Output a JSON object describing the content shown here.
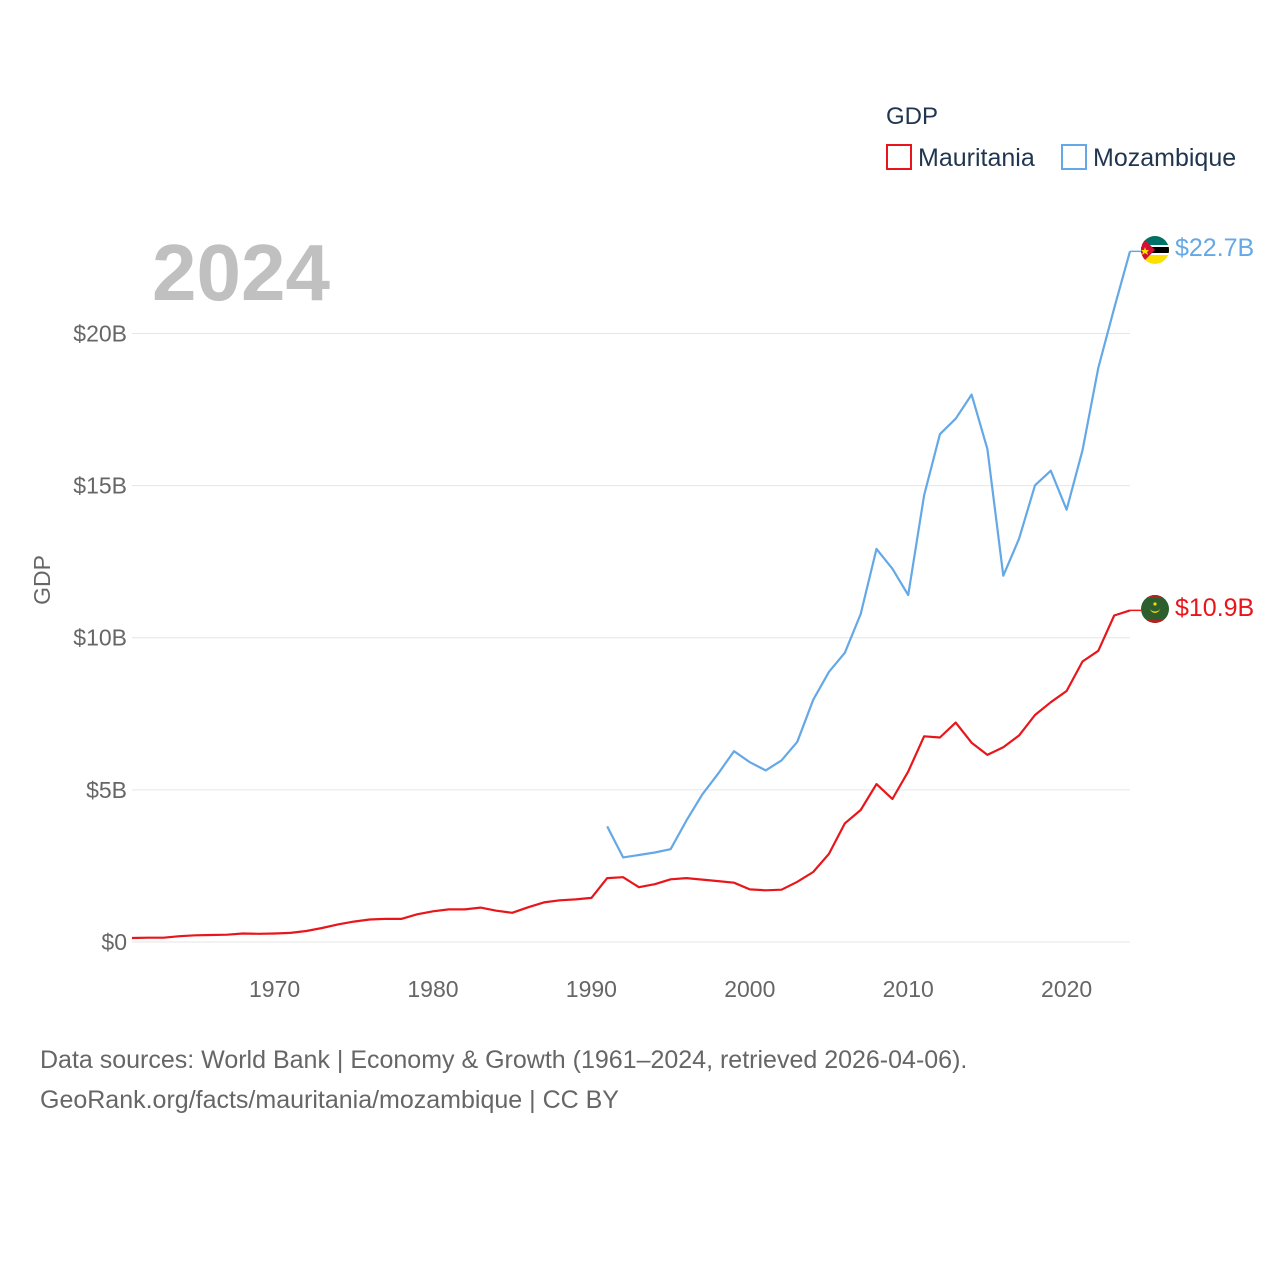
{
  "chart_data": {
    "type": "line",
    "year_label": "2024",
    "ylabel": "GDP",
    "ylim": [
      0,
      23.5
    ],
    "xlim": [
      1961,
      2024
    ],
    "y_ticks": [
      {
        "value": 0,
        "label": "$0"
      },
      {
        "value": 5,
        "label": "$5B"
      },
      {
        "value": 10,
        "label": "$10B"
      },
      {
        "value": 15,
        "label": "$15B"
      },
      {
        "value": 20,
        "label": "$20B"
      }
    ],
    "x_ticks": [
      {
        "value": 1970,
        "label": "1970"
      },
      {
        "value": 1980,
        "label": "1980"
      },
      {
        "value": 1990,
        "label": "1990"
      },
      {
        "value": 2000,
        "label": "2000"
      },
      {
        "value": 2010,
        "label": "2010"
      },
      {
        "value": 2020,
        "label": "2020"
      }
    ],
    "legend": {
      "title": "GDP",
      "position": "top-right"
    },
    "series": [
      {
        "name": "Mauritania",
        "color": "#e8161a",
        "end_label": "$10.9B",
        "x": [
          1961,
          1962,
          1963,
          1964,
          1965,
          1966,
          1967,
          1968,
          1969,
          1970,
          1971,
          1972,
          1973,
          1974,
          1975,
          1976,
          1977,
          1978,
          1979,
          1980,
          1981,
          1982,
          1983,
          1984,
          1985,
          1986,
          1987,
          1988,
          1989,
          1990,
          1991,
          1992,
          1993,
          1994,
          1995,
          1996,
          1997,
          1998,
          1999,
          2000,
          2001,
          2002,
          2003,
          2004,
          2005,
          2006,
          2007,
          2008,
          2009,
          2010,
          2011,
          2012,
          2013,
          2014,
          2015,
          2016,
          2017,
          2018,
          2019,
          2020,
          2021,
          2022,
          2023,
          2024
        ],
        "values": [
          0.13,
          0.14,
          0.14,
          0.19,
          0.22,
          0.23,
          0.24,
          0.28,
          0.27,
          0.28,
          0.3,
          0.36,
          0.46,
          0.58,
          0.67,
          0.74,
          0.76,
          0.76,
          0.91,
          1.01,
          1.07,
          1.07,
          1.13,
          1.03,
          0.96,
          1.14,
          1.3,
          1.37,
          1.4,
          1.45,
          2.1,
          2.13,
          1.8,
          1.9,
          2.06,
          2.1,
          2.05,
          2.0,
          1.95,
          1.73,
          1.7,
          1.72,
          1.98,
          2.3,
          2.9,
          3.9,
          4.34,
          5.19,
          4.7,
          5.6,
          6.76,
          6.72,
          7.21,
          6.55,
          6.15,
          6.4,
          6.79,
          7.46,
          7.88,
          8.25,
          9.22,
          9.57,
          10.73,
          10.9
        ]
      },
      {
        "name": "Mozambique",
        "color": "#64a8e6",
        "end_label": "$22.7B",
        "x": [
          1991,
          1992,
          1993,
          1994,
          1995,
          1996,
          1997,
          1998,
          1999,
          2000,
          2001,
          2002,
          2003,
          2004,
          2005,
          2006,
          2007,
          2008,
          2009,
          2010,
          2011,
          2012,
          2013,
          2014,
          2015,
          2016,
          2017,
          2018,
          2019,
          2020,
          2021,
          2022,
          2023,
          2024
        ],
        "values": [
          3.8,
          2.78,
          2.86,
          2.94,
          3.05,
          3.99,
          4.85,
          5.53,
          6.27,
          5.91,
          5.64,
          5.97,
          6.58,
          7.96,
          8.88,
          9.51,
          10.78,
          12.92,
          12.27,
          11.4,
          14.68,
          16.69,
          17.2,
          17.99,
          16.2,
          12.04,
          13.26,
          15.01,
          15.49,
          14.21,
          16.16,
          18.87,
          20.83,
          22.7
        ]
      }
    ]
  },
  "footer": {
    "line1": "Data sources: World Bank | Economy & Growth (1961–2024, retrieved 2026-04-06).",
    "line2": "GeoRank.org/facts/mauritania/mozambique | CC BY"
  }
}
